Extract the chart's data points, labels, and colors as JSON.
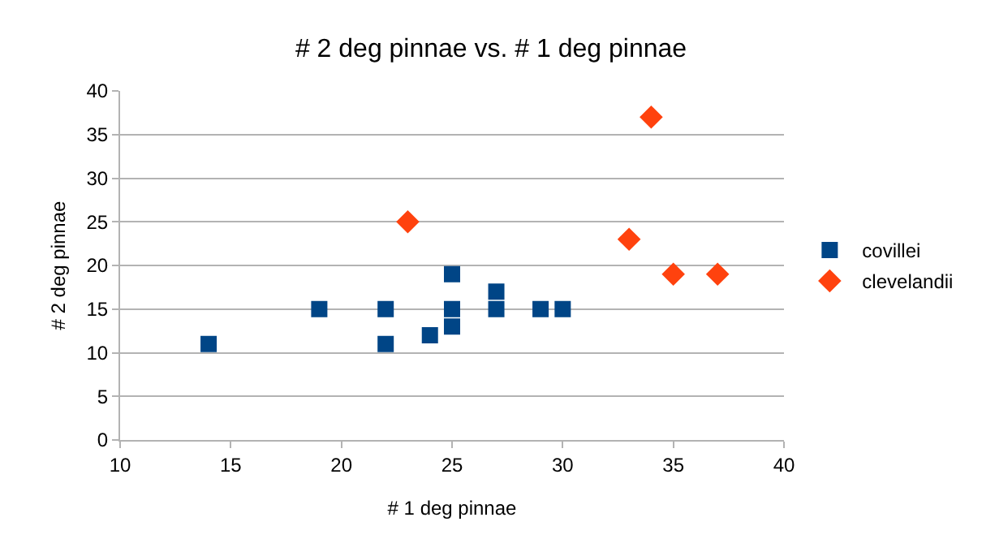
{
  "chart_data": {
    "type": "scatter",
    "title": "# 2 deg pinnae vs. # 1 deg pinnae",
    "xlabel": "# 1 deg pinnae",
    "ylabel": "# 2 deg pinnae",
    "series": [
      {
        "name": "covillei",
        "color": "#004586",
        "marker": "square",
        "x": [
          14,
          19,
          22,
          22,
          24,
          25,
          25,
          25,
          27,
          27,
          29,
          30
        ],
        "values": [
          11,
          15,
          15,
          11,
          12,
          19,
          15,
          13,
          15,
          17,
          15,
          15
        ]
      },
      {
        "name": "clevelandii",
        "color": "#ff420e",
        "marker": "diamond",
        "x": [
          23,
          33,
          34,
          35,
          37
        ],
        "values": [
          25,
          23,
          37,
          19,
          19
        ]
      }
    ],
    "xlim": [
      10,
      40
    ],
    "xticks": [
      10,
      15,
      20,
      25,
      30,
      35,
      40
    ],
    "ylim": [
      0,
      40
    ],
    "yticks": [
      0,
      5,
      10,
      15,
      20,
      25,
      30,
      35,
      40
    ],
    "grid": "y",
    "legend": "right"
  }
}
